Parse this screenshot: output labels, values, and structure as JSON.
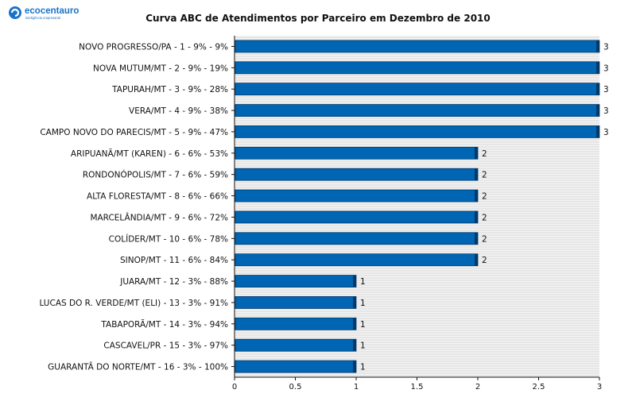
{
  "brand": {
    "name": "ecocentauro",
    "tagline": "inteligência empresarial"
  },
  "chart_data": {
    "type": "bar",
    "orientation": "horizontal",
    "title": "Curva ABC de Atendimentos por Parceiro em Dezembro de 2010",
    "categories": [
      "NOVO PROGRESSO/PA  -  1  -  9%  -  9%",
      "NOVA MUTUM/MT  -  2  -  9%  -  19%",
      "TAPURAH/MT  -  3  -  9%  -  28%",
      "VERA/MT  -  4  -  9%  -  38%",
      "CAMPO NOVO DO PARECIS/MT  -  5  -  9%  -  47%",
      "ARIPUANÃ/MT (KAREN)  -  6  -  6%  -  53%",
      "RONDONÓPOLIS/MT  -  7  -  6%  -  59%",
      "ALTA FLORESTA/MT  -  8  -  6%  -  66%",
      "MARCELÂNDIA/MT  -  9  -  6%  -  72%",
      "COLÍDER/MT  -  10  -  6%  -  78%",
      "SINOP/MT  -  11  -  6%  -  84%",
      "JUARA/MT  -  12  -  3%  -  88%",
      "LUCAS DO R. VERDE/MT (ELI)  -  13  -  3%  -  91%",
      "TABAPORÃ/MT  -  14  -  3%  -  94%",
      "CASCAVEL/PR  -  15  -  3%  -  97%",
      "GUARANTÃ DO NORTE/MT  -  16  -  3%  -  100%"
    ],
    "values": [
      3,
      3,
      3,
      3,
      3,
      2,
      2,
      2,
      2,
      2,
      2,
      1,
      1,
      1,
      1,
      1
    ],
    "data_labels": [
      "3",
      "3",
      "3",
      "3",
      "3",
      "2",
      "2",
      "2",
      "2",
      "2",
      "2",
      "1",
      "1",
      "1",
      "1",
      "1"
    ],
    "xlim": [
      0,
      3
    ],
    "xticks": [
      0,
      0.5,
      1,
      1.5,
      2,
      2.5,
      3
    ],
    "xtick_labels": [
      "0",
      "0.5",
      "1",
      "1.5",
      "2",
      "2.5",
      "3"
    ],
    "grid": true,
    "bar_color": "#0066b3",
    "bar_edge_color": "#003a6b",
    "grid_color": "#d8d8d8",
    "axis_color": "#111111"
  }
}
